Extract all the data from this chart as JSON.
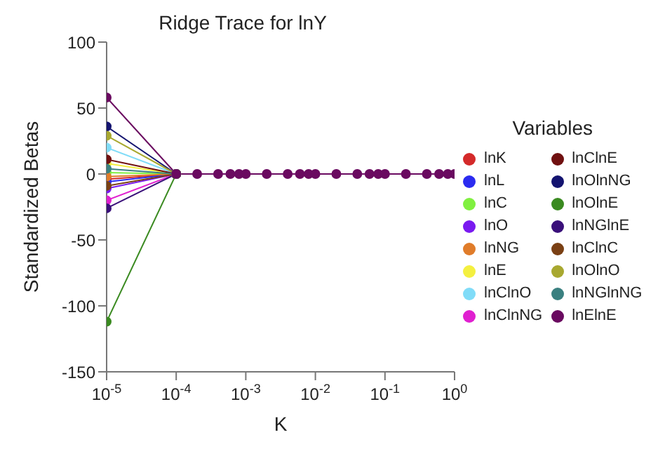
{
  "chart_data": {
    "type": "line",
    "title": "Ridge Trace for lnY",
    "xlabel": "K",
    "ylabel": "Standardized Betas",
    "legend_title": "Variables",
    "legend": "right",
    "marker": "circle",
    "log": "x",
    "x": [
      1e-05,
      0.0001,
      0.0002,
      0.0004,
      0.0006,
      0.0008,
      0.001,
      0.002,
      0.004,
      0.006,
      0.008,
      0.01,
      0.02,
      0.04,
      0.06,
      0.08,
      0.1,
      0.2,
      0.4,
      0.6,
      0.8,
      1
    ],
    "xlim": [
      1e-05,
      1
    ],
    "xticks": [
      {
        "value": 1e-05,
        "label": "10$^{-5}$"
      },
      {
        "value": 0.0001,
        "label": "10$^{-4}$"
      },
      {
        "value": 0.001,
        "label": "10$^{-3}$"
      },
      {
        "value": 0.01,
        "label": "10$^{-2}$"
      },
      {
        "value": 0.1,
        "label": "10$^{-1}$"
      },
      {
        "value": 1,
        "label": "10$^{0}$"
      }
    ],
    "ylim": [
      -150,
      100
    ],
    "yticks": [
      -150,
      -100,
      -50,
      0,
      50,
      100
    ],
    "series": [
      {
        "name": "lnK",
        "color": "#d42a2a",
        "values": [
          -4,
          0,
          null,
          null,
          null,
          null,
          null,
          null,
          null,
          null,
          null,
          null,
          null,
          null,
          null,
          null,
          null,
          null,
          null,
          null,
          null,
          null
        ]
      },
      {
        "name": "lnL",
        "color": "#2b2bf0",
        "values": [
          -6,
          0,
          null,
          null,
          null,
          null,
          null,
          null,
          null,
          null,
          null,
          null,
          null,
          null,
          null,
          null,
          null,
          null,
          null,
          null,
          null,
          null
        ]
      },
      {
        "name": "lnC",
        "color": "#80f040",
        "values": [
          1,
          0,
          null,
          null,
          null,
          null,
          null,
          null,
          null,
          null,
          null,
          null,
          null,
          null,
          null,
          null,
          null,
          null,
          null,
          null,
          null,
          null
        ]
      },
      {
        "name": "lnO",
        "color": "#7a1af0",
        "values": [
          -11,
          0,
          null,
          null,
          null,
          null,
          null,
          null,
          null,
          null,
          null,
          null,
          null,
          null,
          null,
          null,
          null,
          null,
          null,
          null,
          null,
          null
        ]
      },
      {
        "name": "lnNG",
        "color": "#e07c2a",
        "values": [
          -2,
          0,
          null,
          null,
          null,
          null,
          null,
          null,
          null,
          null,
          null,
          null,
          null,
          null,
          null,
          null,
          null,
          null,
          null,
          null,
          null,
          null
        ]
      },
      {
        "name": "lnE",
        "color": "#f4f040",
        "values": [
          8,
          0,
          null,
          null,
          null,
          null,
          null,
          null,
          null,
          null,
          null,
          null,
          null,
          null,
          null,
          null,
          null,
          null,
          null,
          null,
          null,
          null
        ]
      },
      {
        "name": "lnClnO",
        "color": "#80dcf8",
        "values": [
          20,
          0,
          null,
          null,
          null,
          null,
          null,
          null,
          null,
          null,
          null,
          null,
          null,
          null,
          null,
          null,
          null,
          null,
          null,
          null,
          null,
          null
        ]
      },
      {
        "name": "lnClnNG",
        "color": "#e020d0",
        "values": [
          -20,
          0,
          null,
          null,
          null,
          null,
          null,
          null,
          null,
          null,
          null,
          null,
          null,
          null,
          null,
          null,
          null,
          null,
          null,
          null,
          null,
          null
        ]
      },
      {
        "name": "lnClnE",
        "color": "#701010",
        "values": [
          11,
          0,
          null,
          null,
          null,
          null,
          null,
          null,
          null,
          null,
          null,
          null,
          null,
          null,
          null,
          null,
          null,
          null,
          null,
          null,
          null,
          null
        ]
      },
      {
        "name": "lnOlnNG",
        "color": "#141470",
        "values": [
          36,
          0,
          null,
          null,
          null,
          null,
          null,
          null,
          null,
          null,
          null,
          null,
          null,
          null,
          null,
          null,
          null,
          null,
          null,
          null,
          null,
          null
        ]
      },
      {
        "name": "lnOlnE",
        "color": "#3a8a20",
        "values": [
          -112,
          0,
          null,
          null,
          null,
          null,
          null,
          null,
          null,
          null,
          null,
          null,
          null,
          null,
          null,
          null,
          null,
          null,
          null,
          null,
          null,
          null
        ]
      },
      {
        "name": "lnNGlnE",
        "color": "#3a107a",
        "values": [
          -26,
          0,
          null,
          null,
          null,
          null,
          null,
          null,
          null,
          null,
          null,
          null,
          null,
          null,
          null,
          null,
          null,
          null,
          null,
          null,
          null,
          null
        ]
      },
      {
        "name": "lnClnC",
        "color": "#7a4014",
        "values": [
          -9,
          0,
          null,
          null,
          null,
          null,
          null,
          null,
          null,
          null,
          null,
          null,
          null,
          null,
          null,
          null,
          null,
          null,
          null,
          null,
          null,
          null
        ]
      },
      {
        "name": "lnOlnO",
        "color": "#a8a830",
        "values": [
          29,
          0,
          null,
          null,
          null,
          null,
          null,
          null,
          null,
          null,
          null,
          null,
          null,
          null,
          null,
          null,
          null,
          null,
          null,
          null,
          null,
          null
        ]
      },
      {
        "name": "lnNGlnNG",
        "color": "#3a8080",
        "values": [
          4,
          0,
          null,
          null,
          null,
          null,
          null,
          null,
          null,
          null,
          null,
          null,
          null,
          null,
          null,
          null,
          null,
          null,
          null,
          null,
          null,
          null
        ]
      },
      {
        "name": "lnElnE",
        "color": "#6a0a60",
        "values": [
          58,
          0,
          0,
          0,
          0,
          0,
          0,
          0,
          0,
          0,
          0,
          0,
          0,
          0,
          0,
          0,
          0,
          0,
          0,
          0,
          0,
          0
        ]
      }
    ]
  }
}
